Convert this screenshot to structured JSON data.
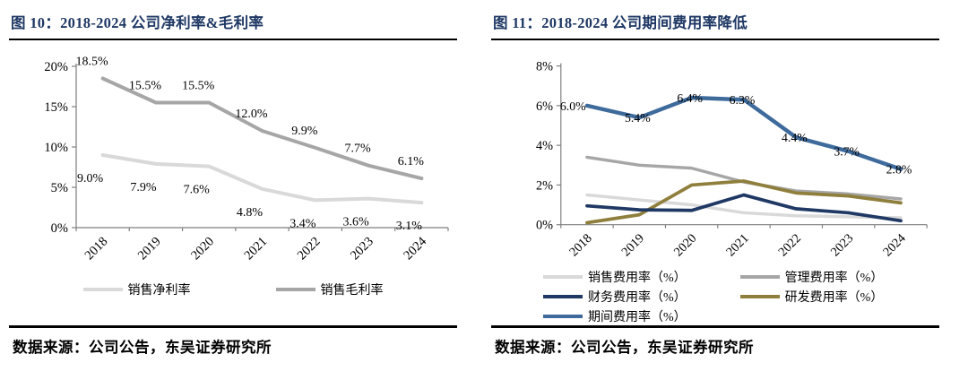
{
  "page": {
    "background": "#ffffff",
    "title_color": "#1F3864",
    "axis_color": "#7f7f7f",
    "label_color": "#000000"
  },
  "panels": [
    {
      "title": "图 10：2018-2024 公司净利率&毛利率",
      "source": "数据来源：公司公告，东吴证券研究所",
      "chart_data": {
        "type": "line",
        "categories": [
          "2018",
          "2019",
          "2020",
          "2021",
          "2022",
          "2023",
          "2024"
        ],
        "ylim": [
          0,
          20
        ],
        "yticks": [
          0,
          5,
          10,
          15,
          20
        ],
        "ytick_labels": [
          "0%",
          "5%",
          "10%",
          "15%",
          "20%"
        ],
        "grid": false,
        "legend_position": "bottom",
        "series": [
          {
            "name": "销售净利率",
            "color": "#D9D9D9",
            "values": [
              9.0,
              7.9,
              7.6,
              4.8,
              3.4,
              3.6,
              3.1
            ],
            "point_labels": [
              "9.0%",
              "7.9%",
              "7.6%",
              "4.8%",
              "3.4%",
              "3.6%",
              "3.1%"
            ]
          },
          {
            "name": "销售毛利率",
            "color": "#A6A6A6",
            "values": [
              18.5,
              15.5,
              15.5,
              12.0,
              9.9,
              7.7,
              6.1
            ],
            "point_labels": [
              "18.5%",
              "15.5%",
              "15.5%",
              "12.0%",
              "9.9%",
              "7.7%",
              "6.1%"
            ]
          }
        ],
        "legend_row": [
          "销售净利率",
          "销售毛利率"
        ]
      }
    },
    {
      "title": "图 11：2018-2024 公司期间费用率降低",
      "source": "数据来源：公司公告，东吴证券研究所",
      "chart_data": {
        "type": "line",
        "categories": [
          "2018",
          "2019",
          "2020",
          "2021",
          "2022",
          "2023",
          "2024"
        ],
        "ylim": [
          0,
          8
        ],
        "yticks": [
          0,
          2,
          4,
          6,
          8
        ],
        "ytick_labels": [
          "0%",
          "2%",
          "4%",
          "6%",
          "8%"
        ],
        "grid": false,
        "legend_position": "bottom",
        "series": [
          {
            "name": "销售费用率（%）",
            "color": "#D9D9D9",
            "values": [
              1.5,
              1.25,
              1.0,
              0.6,
              0.45,
              0.4,
              0.35
            ]
          },
          {
            "name": "管理费用率（%）",
            "color": "#A6A6A6",
            "values": [
              3.4,
              3.0,
              2.85,
              2.15,
              1.7,
              1.55,
              1.3
            ]
          },
          {
            "name": "研发费用率（%）",
            "color": "#8F7F3C",
            "values": [
              0.1,
              0.5,
              2.0,
              2.2,
              1.6,
              1.45,
              1.1
            ]
          },
          {
            "name": "财务费用率（%）",
            "color": "#1F3864",
            "values": [
              0.95,
              0.75,
              0.72,
              1.5,
              0.8,
              0.6,
              0.2
            ]
          },
          {
            "name": "期间费用率（%）",
            "color": "#3E6A9C",
            "values": [
              6.0,
              5.4,
              6.4,
              6.3,
              4.4,
              3.7,
              2.8
            ],
            "point_labels": [
              "6.0%",
              "5.4%",
              "6.4%",
              "6.3%",
              "4.4%",
              "3.7%",
              "2.8%"
            ]
          }
        ],
        "legend_columns": [
          [
            "销售费用率（%）",
            "财务费用率（%）",
            "期间费用率（%）"
          ],
          [
            "管理费用率（%）",
            "研发费用率（%）"
          ]
        ]
      }
    }
  ]
}
